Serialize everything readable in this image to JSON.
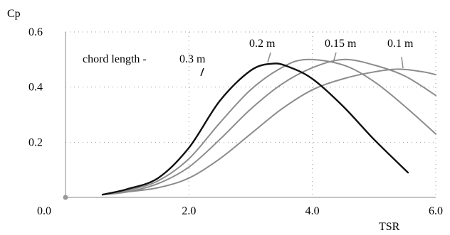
{
  "chart_data": {
    "type": "line",
    "xlabel": "TSR",
    "ylabel": "Cp",
    "xlim": [
      0.0,
      6.0
    ],
    "ylim": [
      0.0,
      0.6
    ],
    "xticks": [
      "0.0",
      "2.0",
      "4.0",
      "6.0"
    ],
    "yticks": [
      "0.2",
      "0.4",
      "0.6"
    ],
    "grid": true,
    "annotation_prefix": "chord length -",
    "series": [
      {
        "name": "0.3 m",
        "color": "#111111",
        "x": [
          0.6,
          1.0,
          1.5,
          2.0,
          2.5,
          3.0,
          3.35,
          3.6,
          4.0,
          4.5,
          5.0,
          5.55
        ],
        "y": [
          0.01,
          0.03,
          0.07,
          0.18,
          0.35,
          0.46,
          0.485,
          0.475,
          0.43,
          0.33,
          0.21,
          0.09
        ]
      },
      {
        "name": "0.2 m",
        "color": "#8c8c8c",
        "x": [
          0.6,
          1.0,
          1.5,
          2.0,
          2.5,
          3.0,
          3.5,
          3.9,
          4.5,
          5.0,
          5.5,
          6.0
        ],
        "y": [
          0.01,
          0.025,
          0.06,
          0.14,
          0.27,
          0.39,
          0.47,
          0.5,
          0.48,
          0.42,
          0.33,
          0.23
        ]
      },
      {
        "name": "0.15 m",
        "color": "#8c8c8c",
        "x": [
          0.6,
          1.0,
          1.5,
          2.0,
          2.5,
          3.0,
          3.5,
          4.0,
          4.5,
          5.0,
          5.5,
          6.0
        ],
        "y": [
          0.01,
          0.02,
          0.05,
          0.11,
          0.21,
          0.32,
          0.41,
          0.47,
          0.5,
          0.48,
          0.44,
          0.37
        ]
      },
      {
        "name": "0.1 m",
        "color": "#8c8c8c",
        "x": [
          0.6,
          1.0,
          1.5,
          2.0,
          2.5,
          3.0,
          3.5,
          4.0,
          4.5,
          5.0,
          5.4,
          5.8,
          6.0
        ],
        "y": [
          0.01,
          0.02,
          0.035,
          0.07,
          0.14,
          0.23,
          0.32,
          0.39,
          0.43,
          0.455,
          0.465,
          0.455,
          0.445
        ]
      }
    ]
  }
}
